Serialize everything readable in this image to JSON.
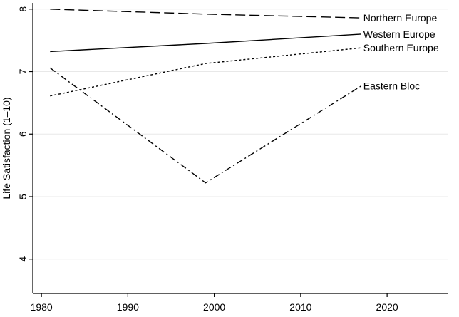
{
  "chart_data": {
    "type": "line",
    "title": "",
    "xlabel": "",
    "ylabel": "Life Satisfaction (1–10)",
    "xlim": [
      1979,
      2027
    ],
    "ylim": [
      3.45,
      8.1
    ],
    "xticks": [
      1980,
      1990,
      2000,
      2010,
      2020
    ],
    "yticks": [
      4,
      5,
      6,
      7,
      8
    ],
    "grid": true,
    "legend": "direct labels at line ends",
    "series": [
      {
        "name": "Northern Europe",
        "dash": "long-dash",
        "x": [
          1981,
          1999,
          2017
        ],
        "y": [
          8.0,
          7.92,
          7.86
        ]
      },
      {
        "name": "Western Europe",
        "dash": "solid",
        "x": [
          1981,
          1999,
          2017
        ],
        "y": [
          7.32,
          7.45,
          7.6
        ]
      },
      {
        "name": "Southern Europe",
        "dash": "short-dash",
        "x": [
          1981,
          1999,
          2017
        ],
        "y": [
          6.61,
          7.13,
          7.38
        ]
      },
      {
        "name": "Eastern Bloc",
        "dash": "dash-dot",
        "x": [
          1981,
          1999,
          2017
        ],
        "y": [
          7.06,
          5.22,
          6.77
        ]
      }
    ]
  }
}
